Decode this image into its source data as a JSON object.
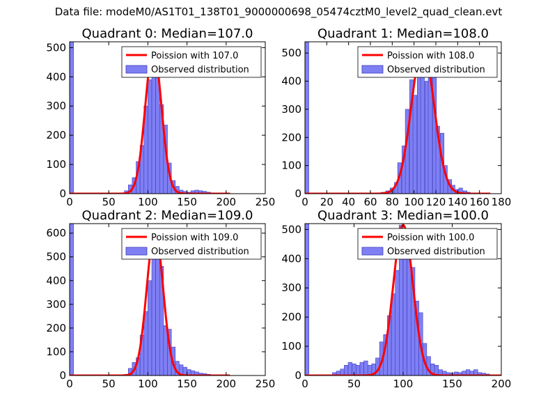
{
  "figure_title": "Data file: modeM0/AS1T01_138T01_9000000698_05474cztM0_level2_quad_clean.evt",
  "colors": {
    "bar_fill": "#7f7ff4",
    "bar_edge": "#3b3bbf",
    "line": "#ff0000"
  },
  "chart_data": [
    {
      "type": "bar",
      "title": "Quadrant 0: Median=107.0",
      "xlim": [
        0,
        250
      ],
      "ylim": [
        0,
        520
      ],
      "xticks": [
        0,
        50,
        100,
        150,
        200,
        250
      ],
      "yticks": [
        0,
        100,
        200,
        300,
        400,
        500
      ],
      "legend": [
        "Poission with 107.0",
        "Observed distribution"
      ],
      "legend_position": "top-right",
      "poisson_lambda": 107.0,
      "poisson_peak": 495,
      "bin_width": 5,
      "bins": [
        [
          0,
          520
        ],
        [
          65,
          2
        ],
        [
          70,
          10
        ],
        [
          75,
          30
        ],
        [
          80,
          55
        ],
        [
          85,
          110
        ],
        [
          90,
          165
        ],
        [
          95,
          300
        ],
        [
          100,
          390
        ],
        [
          105,
          495
        ],
        [
          110,
          400
        ],
        [
          115,
          305
        ],
        [
          120,
          235
        ],
        [
          125,
          105
        ],
        [
          130,
          45
        ],
        [
          135,
          25
        ],
        [
          140,
          12
        ],
        [
          145,
          8
        ],
        [
          150,
          5
        ],
        [
          155,
          10
        ],
        [
          160,
          12
        ],
        [
          165,
          10
        ],
        [
          170,
          8
        ],
        [
          175,
          5
        ],
        [
          180,
          3
        ],
        [
          185,
          2
        ]
      ]
    },
    {
      "type": "bar",
      "title": "Quadrant 1: Median=108.0",
      "xlim": [
        0,
        180
      ],
      "ylim": [
        0,
        540
      ],
      "xticks": [
        0,
        20,
        40,
        60,
        80,
        100,
        120,
        140,
        160,
        180
      ],
      "yticks": [
        0,
        100,
        200,
        300,
        400,
        500
      ],
      "legend": [
        "Poission with 108.0",
        "Observed distribution"
      ],
      "legend_position": "top-right",
      "poisson_lambda": 108.0,
      "poisson_peak": 520,
      "bin_width": 3.5,
      "bins": [
        [
          0,
          540
        ],
        [
          70,
          5
        ],
        [
          74,
          10
        ],
        [
          78,
          20
        ],
        [
          82,
          40
        ],
        [
          85,
          110
        ],
        [
          89,
          170
        ],
        [
          92,
          300
        ],
        [
          96,
          405
        ],
        [
          99,
          350
        ],
        [
          103,
          520
        ],
        [
          106,
          510
        ],
        [
          110,
          400
        ],
        [
          113,
          425
        ],
        [
          117,
          500
        ],
        [
          120,
          240
        ],
        [
          124,
          215
        ],
        [
          127,
          100
        ],
        [
          131,
          50
        ],
        [
          134,
          30
        ],
        [
          138,
          15
        ],
        [
          141,
          20
        ],
        [
          145,
          10
        ],
        [
          148,
          5
        ],
        [
          152,
          2
        ]
      ]
    },
    {
      "type": "bar",
      "title": "Quadrant 2: Median=109.0",
      "xlim": [
        0,
        250
      ],
      "ylim": [
        0,
        640
      ],
      "xticks": [
        0,
        50,
        100,
        150,
        200,
        250
      ],
      "yticks": [
        0,
        100,
        200,
        300,
        400,
        500,
        600
      ],
      "legend": [
        "Poission with 109.0",
        "Observed distribution"
      ],
      "legend_position": "top-right",
      "poisson_lambda": 109.0,
      "poisson_peak": 610,
      "bin_width": 5,
      "bins": [
        [
          0,
          640
        ],
        [
          65,
          2
        ],
        [
          70,
          5
        ],
        [
          75,
          30
        ],
        [
          80,
          55
        ],
        [
          85,
          75
        ],
        [
          90,
          170
        ],
        [
          95,
          270
        ],
        [
          100,
          400
        ],
        [
          105,
          610
        ],
        [
          110,
          560
        ],
        [
          115,
          460
        ],
        [
          120,
          210
        ],
        [
          125,
          195
        ],
        [
          130,
          120
        ],
        [
          135,
          60
        ],
        [
          140,
          45
        ],
        [
          145,
          35
        ],
        [
          150,
          25
        ],
        [
          155,
          20
        ],
        [
          160,
          15
        ],
        [
          165,
          10
        ],
        [
          170,
          8
        ],
        [
          175,
          5
        ],
        [
          180,
          3
        ],
        [
          185,
          2
        ]
      ]
    },
    {
      "type": "bar",
      "title": "Quadrant 3: Median=100.0",
      "xlim": [
        0,
        200
      ],
      "ylim": [
        0,
        520
      ],
      "xticks": [
        0,
        50,
        100,
        150,
        200
      ],
      "yticks": [
        0,
        100,
        200,
        300,
        400,
        500
      ],
      "legend": [
        "Poission with 100.0",
        "Observed distribution"
      ],
      "legend_position": "top-right",
      "poisson_lambda": 100.0,
      "poisson_peak": 515,
      "bin_width": 4,
      "bins": [
        [
          0,
          520
        ],
        [
          28,
          10
        ],
        [
          32,
          15
        ],
        [
          36,
          22
        ],
        [
          40,
          35
        ],
        [
          44,
          45
        ],
        [
          48,
          40
        ],
        [
          52,
          35
        ],
        [
          56,
          45
        ],
        [
          60,
          50
        ],
        [
          64,
          35
        ],
        [
          68,
          40
        ],
        [
          72,
          60
        ],
        [
          76,
          115
        ],
        [
          80,
          140
        ],
        [
          84,
          205
        ],
        [
          88,
          280
        ],
        [
          92,
          360
        ],
        [
          96,
          515
        ],
        [
          100,
          475
        ],
        [
          104,
          450
        ],
        [
          108,
          370
        ],
        [
          112,
          255
        ],
        [
          116,
          215
        ],
        [
          120,
          110
        ],
        [
          124,
          65
        ],
        [
          128,
          40
        ],
        [
          132,
          35
        ],
        [
          136,
          20
        ],
        [
          140,
          15
        ],
        [
          144,
          10
        ],
        [
          148,
          8
        ],
        [
          152,
          12
        ],
        [
          156,
          10
        ],
        [
          160,
          15
        ],
        [
          164,
          20
        ],
        [
          168,
          15
        ],
        [
          172,
          20
        ],
        [
          176,
          10
        ],
        [
          180,
          8
        ],
        [
          184,
          5
        ]
      ]
    }
  ]
}
